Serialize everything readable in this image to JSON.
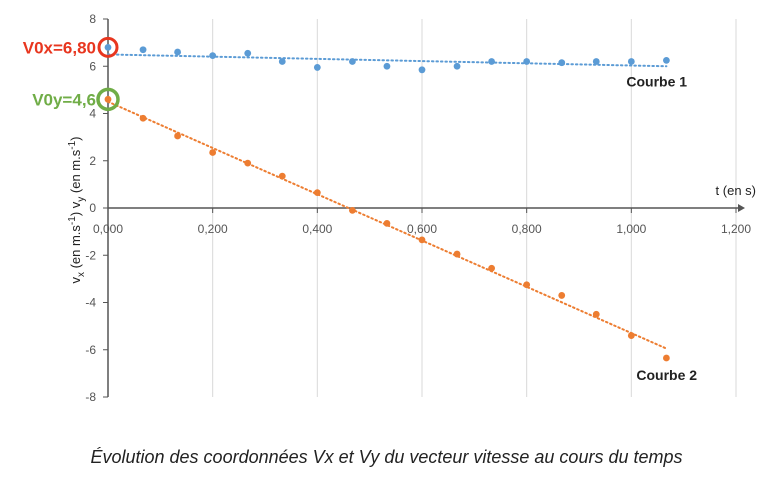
{
  "caption": "Évolution des coordonnées Vx et Vy du vecteur vitesse au cours du temps",
  "chart_data": {
    "type": "scatter",
    "xlabel": "t (en s)",
    "ylabel_parts": [
      "v",
      "x",
      " (en m.s",
      "-1",
      ") v",
      "y",
      " (en m.s",
      "-1",
      ")"
    ],
    "xlim": [
      0,
      1.2
    ],
    "ylim": [
      -8,
      8
    ],
    "x_ticks": [
      "0,000",
      "0,200",
      "0,400",
      "0,600",
      "0,800",
      "1,000",
      "1,200"
    ],
    "y_ticks": [
      "-8",
      "-6",
      "-4",
      "-2",
      "0",
      "2",
      "4",
      "6",
      "8"
    ],
    "grid": "vertical",
    "series": [
      {
        "name": "Courbe 1",
        "color": "#5b9bd5",
        "x": [
          0,
          0.067,
          0.133,
          0.2,
          0.267,
          0.333,
          0.4,
          0.467,
          0.533,
          0.6,
          0.667,
          0.733,
          0.8,
          0.867,
          0.933,
          1.0,
          1.067
        ],
        "y": [
          6.8,
          6.7,
          6.6,
          6.45,
          6.55,
          6.2,
          5.95,
          6.2,
          6.0,
          5.85,
          6.0,
          6.2,
          6.2,
          6.15,
          6.2,
          6.2,
          6.25
        ],
        "trendline": [
          [
            0,
            6.5
          ],
          [
            1.067,
            6.0
          ]
        ]
      },
      {
        "name": "Courbe 2",
        "color": "#ed7d31",
        "x": [
          0,
          0.067,
          0.133,
          0.2,
          0.267,
          0.333,
          0.4,
          0.467,
          0.533,
          0.6,
          0.667,
          0.733,
          0.8,
          0.867,
          0.933,
          1.0,
          1.067
        ],
        "y": [
          4.6,
          3.8,
          3.05,
          2.35,
          1.9,
          1.35,
          0.65,
          -0.1,
          -0.65,
          -1.35,
          -1.95,
          -2.55,
          -3.25,
          -3.7,
          -4.5,
          -5.4,
          -6.35
        ],
        "trendline": [
          [
            0,
            4.5
          ],
          [
            1.067,
            -5.95
          ]
        ]
      }
    ],
    "annotations": [
      {
        "text": "V0x=6,80",
        "x": 0,
        "y": 6.8,
        "color": "#e8361f"
      },
      {
        "text": "V0y=4,6",
        "x": 0,
        "y": 4.6,
        "color": "#70ad47"
      }
    ]
  }
}
